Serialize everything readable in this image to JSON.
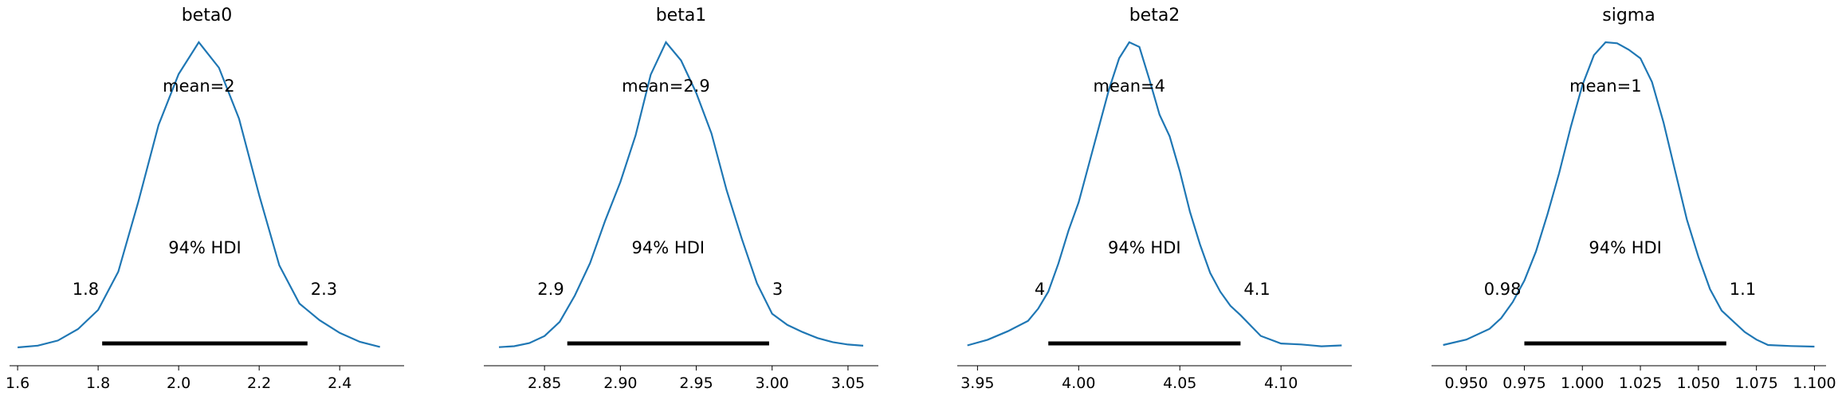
{
  "chart_data": {
    "type": "line",
    "plot_kind": "posterior density with 94% HDI",
    "line_color": "#1f77b4",
    "hdi_color": "#000000",
    "panels": [
      {
        "title": "beta0",
        "mean_label": "mean=2",
        "hdi_label": "94% HDI",
        "hdi": [
          1.81,
          2.32
        ],
        "hdi_low_label": "1.8",
        "hdi_high_label": "2.3",
        "xlim": [
          1.58,
          2.56
        ],
        "xticks": [
          1.6,
          1.8,
          2.0,
          2.2,
          2.4
        ],
        "xtick_labels": [
          "1.6",
          "1.8",
          "2.0",
          "2.2",
          "2.4"
        ],
        "density": {
          "x": [
            1.6,
            1.65,
            1.7,
            1.75,
            1.8,
            1.85,
            1.9,
            1.95,
            2.0,
            2.05,
            2.1,
            2.15,
            2.2,
            2.25,
            2.3,
            2.35,
            2.4,
            2.45,
            2.5
          ],
          "y": [
            0.006,
            0.02,
            0.06,
            0.15,
            0.3,
            0.6,
            1.15,
            1.75,
            2.15,
            2.4,
            2.2,
            1.8,
            1.2,
            0.65,
            0.35,
            0.22,
            0.12,
            0.05,
            0.01
          ]
        }
      },
      {
        "title": "beta1",
        "mean_label": "mean=2.9",
        "hdi_label": "94% HDI",
        "hdi": [
          2.865,
          2.998
        ],
        "hdi_low_label": "2.9",
        "hdi_high_label": "3",
        "xlim": [
          2.81,
          3.07
        ],
        "xticks": [
          2.85,
          2.9,
          2.95,
          3.0,
          3.05
        ],
        "xtick_labels": [
          "2.85",
          "2.90",
          "2.95",
          "3.00",
          "3.05"
        ],
        "density": {
          "x": [
            2.82,
            2.83,
            2.84,
            2.85,
            2.86,
            2.87,
            2.88,
            2.89,
            2.9,
            2.91,
            2.92,
            2.93,
            2.94,
            2.95,
            2.96,
            2.97,
            2.98,
            2.99,
            3.0,
            3.01,
            3.02,
            3.03,
            3.04,
            3.05,
            3.06
          ],
          "y": [
            0.05,
            0.1,
            0.25,
            0.6,
            1.3,
            2.6,
            4.2,
            6.3,
            8.2,
            10.5,
            13.5,
            15.1,
            14.2,
            12.6,
            10.6,
            7.8,
            5.4,
            3.2,
            1.7,
            1.15,
            0.8,
            0.5,
            0.3,
            0.18,
            0.12
          ]
        }
      },
      {
        "title": "beta2",
        "mean_label": "mean=4",
        "hdi_label": "94% HDI",
        "hdi": [
          3.985,
          4.08
        ],
        "hdi_low_label": "4",
        "hdi_high_label": "4.1",
        "xlim": [
          3.94,
          4.135
        ],
        "xticks": [
          3.95,
          4.0,
          4.05,
          4.1
        ],
        "xtick_labels": [
          "3.95",
          "4.00",
          "4.05",
          "4.10"
        ],
        "density": {
          "x": [
            3.945,
            3.955,
            3.965,
            3.975,
            3.98,
            3.985,
            3.99,
            3.995,
            4.0,
            4.005,
            4.01,
            4.015,
            4.02,
            4.025,
            4.03,
            4.035,
            4.04,
            4.045,
            4.05,
            4.055,
            4.06,
            4.065,
            4.07,
            4.075,
            4.08,
            4.085,
            4.09,
            4.1,
            4.11,
            4.12,
            4.13
          ],
          "y": [
            0.3,
            0.9,
            1.8,
            2.9,
            4.2,
            6.0,
            9.0,
            12.5,
            15.5,
            19.5,
            23.5,
            27.5,
            30.8,
            32.5,
            32.0,
            28.5,
            24.8,
            22.5,
            18.8,
            14.5,
            11.0,
            8.0,
            6.0,
            4.5,
            3.5,
            2.4,
            1.3,
            0.5,
            0.4,
            0.2,
            0.3
          ]
        }
      },
      {
        "title": "sigma",
        "mean_label": "mean=1",
        "hdi_label": "94% HDI",
        "hdi": [
          0.975,
          1.062
        ],
        "hdi_low_label": "0.98",
        "hdi_high_label": "1.1",
        "xlim": [
          0.935,
          1.105
        ],
        "xticks": [
          0.95,
          0.975,
          1.0,
          1.025,
          1.05,
          1.075,
          1.1
        ],
        "xtick_labels": [
          "0.950",
          "0.975",
          "1.000",
          "1.025",
          "1.050",
          "1.075",
          "1.100"
        ],
        "density": {
          "x": [
            0.94,
            0.95,
            0.96,
            0.965,
            0.97,
            0.975,
            0.98,
            0.985,
            0.99,
            0.995,
            1.0,
            1.005,
            1.01,
            1.015,
            1.02,
            1.025,
            1.03,
            1.035,
            1.04,
            1.045,
            1.05,
            1.055,
            1.06,
            1.065,
            1.07,
            1.075,
            1.08,
            1.09,
            1.1
          ],
          "y": [
            0.3,
            0.8,
            1.8,
            2.8,
            4.3,
            6.3,
            9.0,
            12.5,
            16.3,
            20.6,
            24.5,
            27.3,
            28.5,
            28.4,
            27.8,
            27.0,
            24.8,
            21.0,
            16.5,
            12.0,
            8.5,
            5.5,
            3.5,
            2.5,
            1.5,
            0.8,
            0.3,
            0.2,
            0.15
          ]
        }
      }
    ]
  }
}
